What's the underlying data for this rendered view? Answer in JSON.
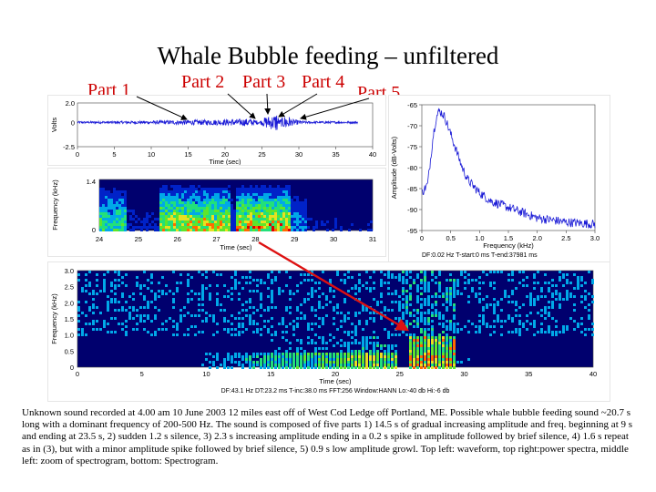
{
  "title": "Whale Bubble feeding – unfiltered",
  "parts": [
    "Part 1",
    "Part 2",
    "Part 3",
    "Part 4",
    "Part 5"
  ],
  "caption": "Unknown sound recorded at 4.00 am 10 June 2003 12 miles east off of West Cod Ledge off Portland, ME.  Possible whale bubble feeding sound ~20.7 s long with a dominant frequency of 200-500 Hz.  The sound is composed of  five parts 1) 14.5 s of gradual increasing amplitude and freq. beginning at 9 s and ending at 23.5 s, 2) sudden 1.2 s silence, 3) 2.3 s increasing amplitude ending in a 0.2 s spike in amplitude followed by brief silence, 4) 1.6 s repeat as in (3), but with a minor amplitude spike followed by brief silence, 5) 0.9 s low amplitude growl.  Top left: waveform, top right:power spectra, middle left: zoom of spectrogram, bottom: Spectrogram.",
  "colors": {
    "title": "#000000",
    "part_labels": "#cc0000",
    "arrow": "#dd1111",
    "waveform": "#1a1ad6",
    "spectrum": "#1a1ad6",
    "spectrogram_bg": "#00006e"
  },
  "chart_data": [
    {
      "type": "line",
      "name": "waveform",
      "xlabel": "Time (sec)",
      "ylabel": "Volts",
      "xlim": [
        0,
        40
      ],
      "ylim": [
        -2.5,
        2.0
      ],
      "xticks": [
        0,
        5,
        10,
        15,
        20,
        25,
        30,
        35,
        40
      ],
      "ytick_labels": [
        "2.0",
        "0",
        "-2.5"
      ],
      "envelope": {
        "x": [
          0,
          9,
          15,
          20,
          23.5,
          24.7,
          25.5,
          26.8,
          27.0,
          27.3,
          28.5,
          28.9,
          29.8,
          31,
          40
        ],
        "amplitude": [
          0.1,
          0.15,
          0.25,
          0.3,
          0.4,
          0.12,
          0.6,
          0.8,
          1.2,
          0.25,
          0.9,
          0.35,
          0.25,
          0.12,
          0.1
        ]
      }
    },
    {
      "type": "line",
      "name": "power spectrum",
      "xlabel": "Frequency (kHz)",
      "ylabel": "Amplitude (dB-Volts)",
      "xlim": [
        0,
        3.0
      ],
      "ylim": [
        -95,
        -65
      ],
      "xticks": [
        0,
        0.5,
        1.0,
        1.5,
        2.0,
        2.5,
        3.0
      ],
      "yticks": [
        -65,
        -70,
        -75,
        -80,
        -85,
        -90,
        -95
      ],
      "x": [
        0.0,
        0.1,
        0.2,
        0.25,
        0.3,
        0.35,
        0.4,
        0.5,
        0.6,
        0.7,
        0.8,
        1.0,
        1.2,
        1.5,
        1.8,
        2.0,
        2.5,
        3.0
      ],
      "y": [
        -86,
        -84,
        -72,
        -68,
        -66.5,
        -67,
        -68,
        -72,
        -76,
        -80,
        -83,
        -86,
        -88,
        -89.5,
        -91,
        -92,
        -93,
        -93.5
      ],
      "info": "DF:0.02 Hz   T-start:0 ms   T-end:37981 ms"
    },
    {
      "type": "heatmap",
      "name": "spectrogram zoom",
      "xlabel": "Time (sec)",
      "ylabel": "Frequency (kHz)",
      "xlim": [
        24,
        31
      ],
      "ylim": [
        0,
        1.4
      ],
      "xticks": [
        24,
        25,
        26,
        27,
        28,
        29,
        30,
        31
      ],
      "ytick_labels": [
        "1.4",
        "0"
      ]
    },
    {
      "type": "heatmap",
      "name": "spectrogram",
      "xlabel": "Time (sec)",
      "ylabel": "Frequency (kHz)",
      "xlim": [
        0,
        40
      ],
      "ylim": [
        0,
        3.0
      ],
      "xticks": [
        0,
        5,
        10,
        15,
        20,
        25,
        30,
        35,
        40
      ],
      "yticks": [
        0,
        0.5,
        1.0,
        1.5,
        2.0,
        2.5,
        3.0
      ],
      "info": "DF:43.1 Hz    DT:23.2 ms    T-inc:38.0 ms    FFT:256    Window:HANN    Lo:-40 db    Hi:-6 db"
    }
  ]
}
